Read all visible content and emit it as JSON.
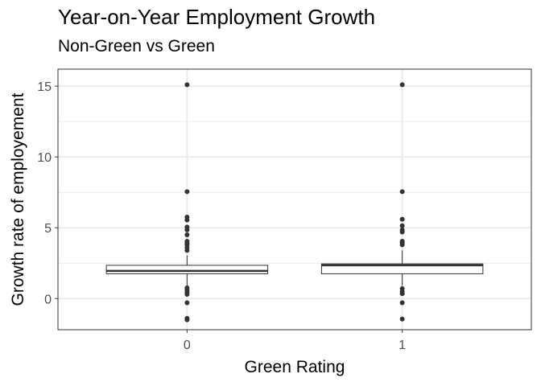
{
  "chart_data": {
    "type": "boxplot",
    "title": "Year-on-Year Employment Growth",
    "subtitle": "Non-Green vs Green",
    "xlabel": "Green Rating",
    "ylabel": "Growth rate of employement",
    "categories": [
      "0",
      "1"
    ],
    "ylim": [
      -2.2,
      16.2
    ],
    "yticks": [
      0,
      5,
      10,
      15
    ],
    "grid": true,
    "legend": "none",
    "colors": {
      "box_fill": "#ffffff",
      "box_line": "#333333",
      "outlier": "#333333",
      "grid": "#ebebeb",
      "panel_border": "#333333"
    },
    "boxes": [
      {
        "category": "0",
        "q1": 1.75,
        "median": 1.95,
        "q3": 2.35,
        "whisker_low": 0.9,
        "whisker_high": 3.05,
        "outliers": [
          15.1,
          7.55,
          5.75,
          5.55,
          5.05,
          4.85,
          4.5,
          4.05,
          3.9,
          3.8,
          3.6,
          3.4,
          0.75,
          0.6,
          0.45,
          0.3,
          -0.3,
          -1.4,
          -1.5
        ]
      },
      {
        "category": "1",
        "q1": 1.75,
        "median": 2.35,
        "q3": 2.45,
        "whisker_low": 0.9,
        "whisker_high": 3.4,
        "outliers": [
          15.1,
          7.55,
          5.6,
          5.15,
          4.85,
          4.7,
          4.05,
          3.95,
          3.8,
          0.7,
          0.5,
          0.35,
          -0.3,
          -1.45
        ]
      }
    ]
  }
}
